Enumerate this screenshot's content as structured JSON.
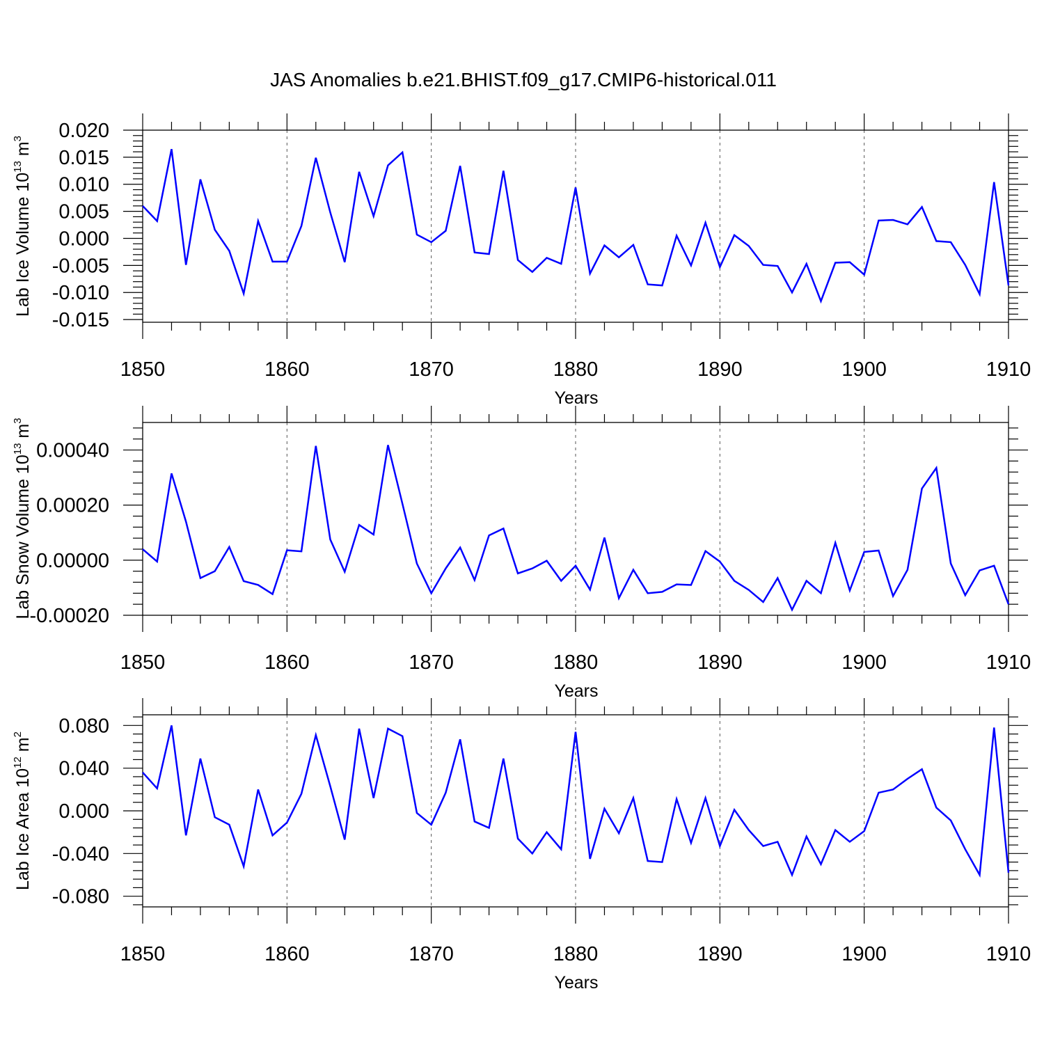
{
  "title": "JAS Anomalies b.e21.BHIST.f09_g17.CMIP6-historical.011",
  "colors": {
    "line": "#0000ff",
    "axis": "#000000",
    "grid": "#555555"
  },
  "chart_data": [
    {
      "type": "line",
      "ylabel_main": "Lab Ice Volume 10",
      "ylabel_exp": "13",
      "ylabel_unit": " m",
      "ylabel_unit_exp": "3",
      "xlabel": "Years",
      "xlim": [
        1850,
        1910
      ],
      "ylim": [
        -0.0155,
        0.02
      ],
      "yticks": [
        -0.015,
        -0.01,
        -0.005,
        0.0,
        0.005,
        0.01,
        0.015,
        0.02
      ],
      "ytick_labels": [
        "-0.015",
        "-0.010",
        "-0.005",
        "0.000",
        "0.005",
        "0.010",
        "0.015",
        "0.020"
      ],
      "xticks": [
        1850,
        1860,
        1870,
        1880,
        1890,
        1900,
        1910
      ],
      "xtick_labels": [
        "1850",
        "1860",
        "1870",
        "1880",
        "1890",
        "1900",
        "1910"
      ],
      "x_start": 1850,
      "values": [
        0.006,
        0.0032,
        0.0165,
        -0.0049,
        0.0109,
        0.0016,
        -0.0023,
        -0.0102,
        0.0032,
        -0.0043,
        -0.0043,
        0.0023,
        0.0149,
        0.0048,
        -0.0044,
        0.0123,
        0.0041,
        0.0135,
        0.0159,
        0.0007,
        -0.0007,
        0.0014,
        0.0134,
        -0.0026,
        -0.0029,
        0.0125,
        -0.004,
        -0.0062,
        -0.0036,
        -0.0047,
        0.0094,
        -0.0065,
        -0.0013,
        -0.0035,
        -0.0012,
        -0.0085,
        -0.0087,
        0.0005,
        -0.005,
        0.0029,
        -0.0053,
        0.0006,
        -0.0014,
        -0.0049,
        -0.0051,
        -0.01,
        -0.0047,
        -0.0116,
        -0.0045,
        -0.0044,
        -0.0067,
        0.0033,
        0.0034,
        0.0026,
        0.0058,
        -0.0005,
        -0.0007,
        -0.0049,
        -0.0103,
        0.0104,
        -0.0087
      ]
    },
    {
      "type": "line",
      "ylabel_main": "Lab Snow Volume 10",
      "ylabel_exp": "13",
      "ylabel_unit": " m",
      "ylabel_unit_exp": "3",
      "xlabel": "Years",
      "xlim": [
        1850,
        1910
      ],
      "ylim": [
        -0.0002,
        0.0005
      ],
      "yticks": [
        -0.0002,
        0.0,
        0.0002,
        0.0004
      ],
      "ytick_labels": [
        "-0.00020",
        "0.00000",
        "0.00020",
        "0.00040"
      ],
      "xticks": [
        1850,
        1860,
        1870,
        1880,
        1890,
        1900,
        1910
      ],
      "xtick_labels": [
        "1850",
        "1860",
        "1870",
        "1880",
        "1890",
        "1900",
        "1910"
      ],
      "x_start": 1850,
      "values": [
        4e-05,
        -5e-06,
        0.000315,
        0.00014,
        -6.5e-05,
        -4e-05,
        4.8e-05,
        -7.6e-05,
        -9e-05,
        -0.000123,
        3.6e-05,
        3.2e-05,
        0.000415,
        7.5e-05,
        -4.2e-05,
        0.000128,
        9.3e-05,
        0.000418,
        0.000205,
        -1.2e-05,
        -0.00012,
        -3e-05,
        4.6e-05,
        -7.2e-05,
        9e-05,
        0.000115,
        -4.8e-05,
        -3e-05,
        -2e-06,
        -7.5e-05,
        -2e-05,
        -0.000107,
        8.2e-05,
        -0.000138,
        -3.5e-05,
        -0.00012,
        -0.000115,
        -8.8e-05,
        -9e-05,
        3.3e-05,
        -5e-06,
        -7.5e-05,
        -0.000108,
        -0.000152,
        -6.5e-05,
        -0.00018,
        -7.5e-05,
        -0.00012,
        6.3e-05,
        -0.00011,
        3e-05,
        3.5e-05,
        -0.00013,
        -3.5e-05,
        0.00026,
        0.000335,
        -1.2e-05,
        -0.000127,
        -3.7e-05,
        -2e-05,
        -0.00016
      ]
    },
    {
      "type": "line",
      "ylabel_main": "Lab Ice Area 10",
      "ylabel_exp": "12",
      "ylabel_unit": " m",
      "ylabel_unit_exp": "2",
      "xlabel": "Years",
      "xlim": [
        1850,
        1910
      ],
      "ylim": [
        -0.09,
        0.09
      ],
      "yticks": [
        -0.08,
        -0.04,
        0.0,
        0.04,
        0.08
      ],
      "ytick_labels": [
        "-0.080",
        "-0.040",
        "0.000",
        "0.040",
        "0.080"
      ],
      "xticks": [
        1850,
        1860,
        1870,
        1880,
        1890,
        1900,
        1910
      ],
      "xtick_labels": [
        "1850",
        "1860",
        "1870",
        "1880",
        "1890",
        "1900",
        "1910"
      ],
      "x_start": 1850,
      "values": [
        0.036,
        0.021,
        0.08,
        -0.023,
        0.049,
        -0.006,
        -0.013,
        -0.052,
        0.02,
        -0.023,
        -0.011,
        0.016,
        0.071,
        0.023,
        -0.027,
        0.077,
        0.012,
        0.077,
        0.07,
        -0.002,
        -0.013,
        0.017,
        0.067,
        -0.01,
        -0.016,
        0.049,
        -0.026,
        -0.04,
        -0.02,
        -0.036,
        0.074,
        -0.045,
        0.002,
        -0.021,
        0.012,
        -0.047,
        -0.048,
        0.011,
        -0.03,
        0.012,
        -0.033,
        0.001,
        -0.018,
        -0.033,
        -0.029,
        -0.06,
        -0.024,
        -0.05,
        -0.018,
        -0.029,
        -0.019,
        0.017,
        0.02,
        0.03,
        0.039,
        0.003,
        -0.009,
        -0.036,
        -0.06,
        0.078,
        -0.058
      ]
    }
  ]
}
